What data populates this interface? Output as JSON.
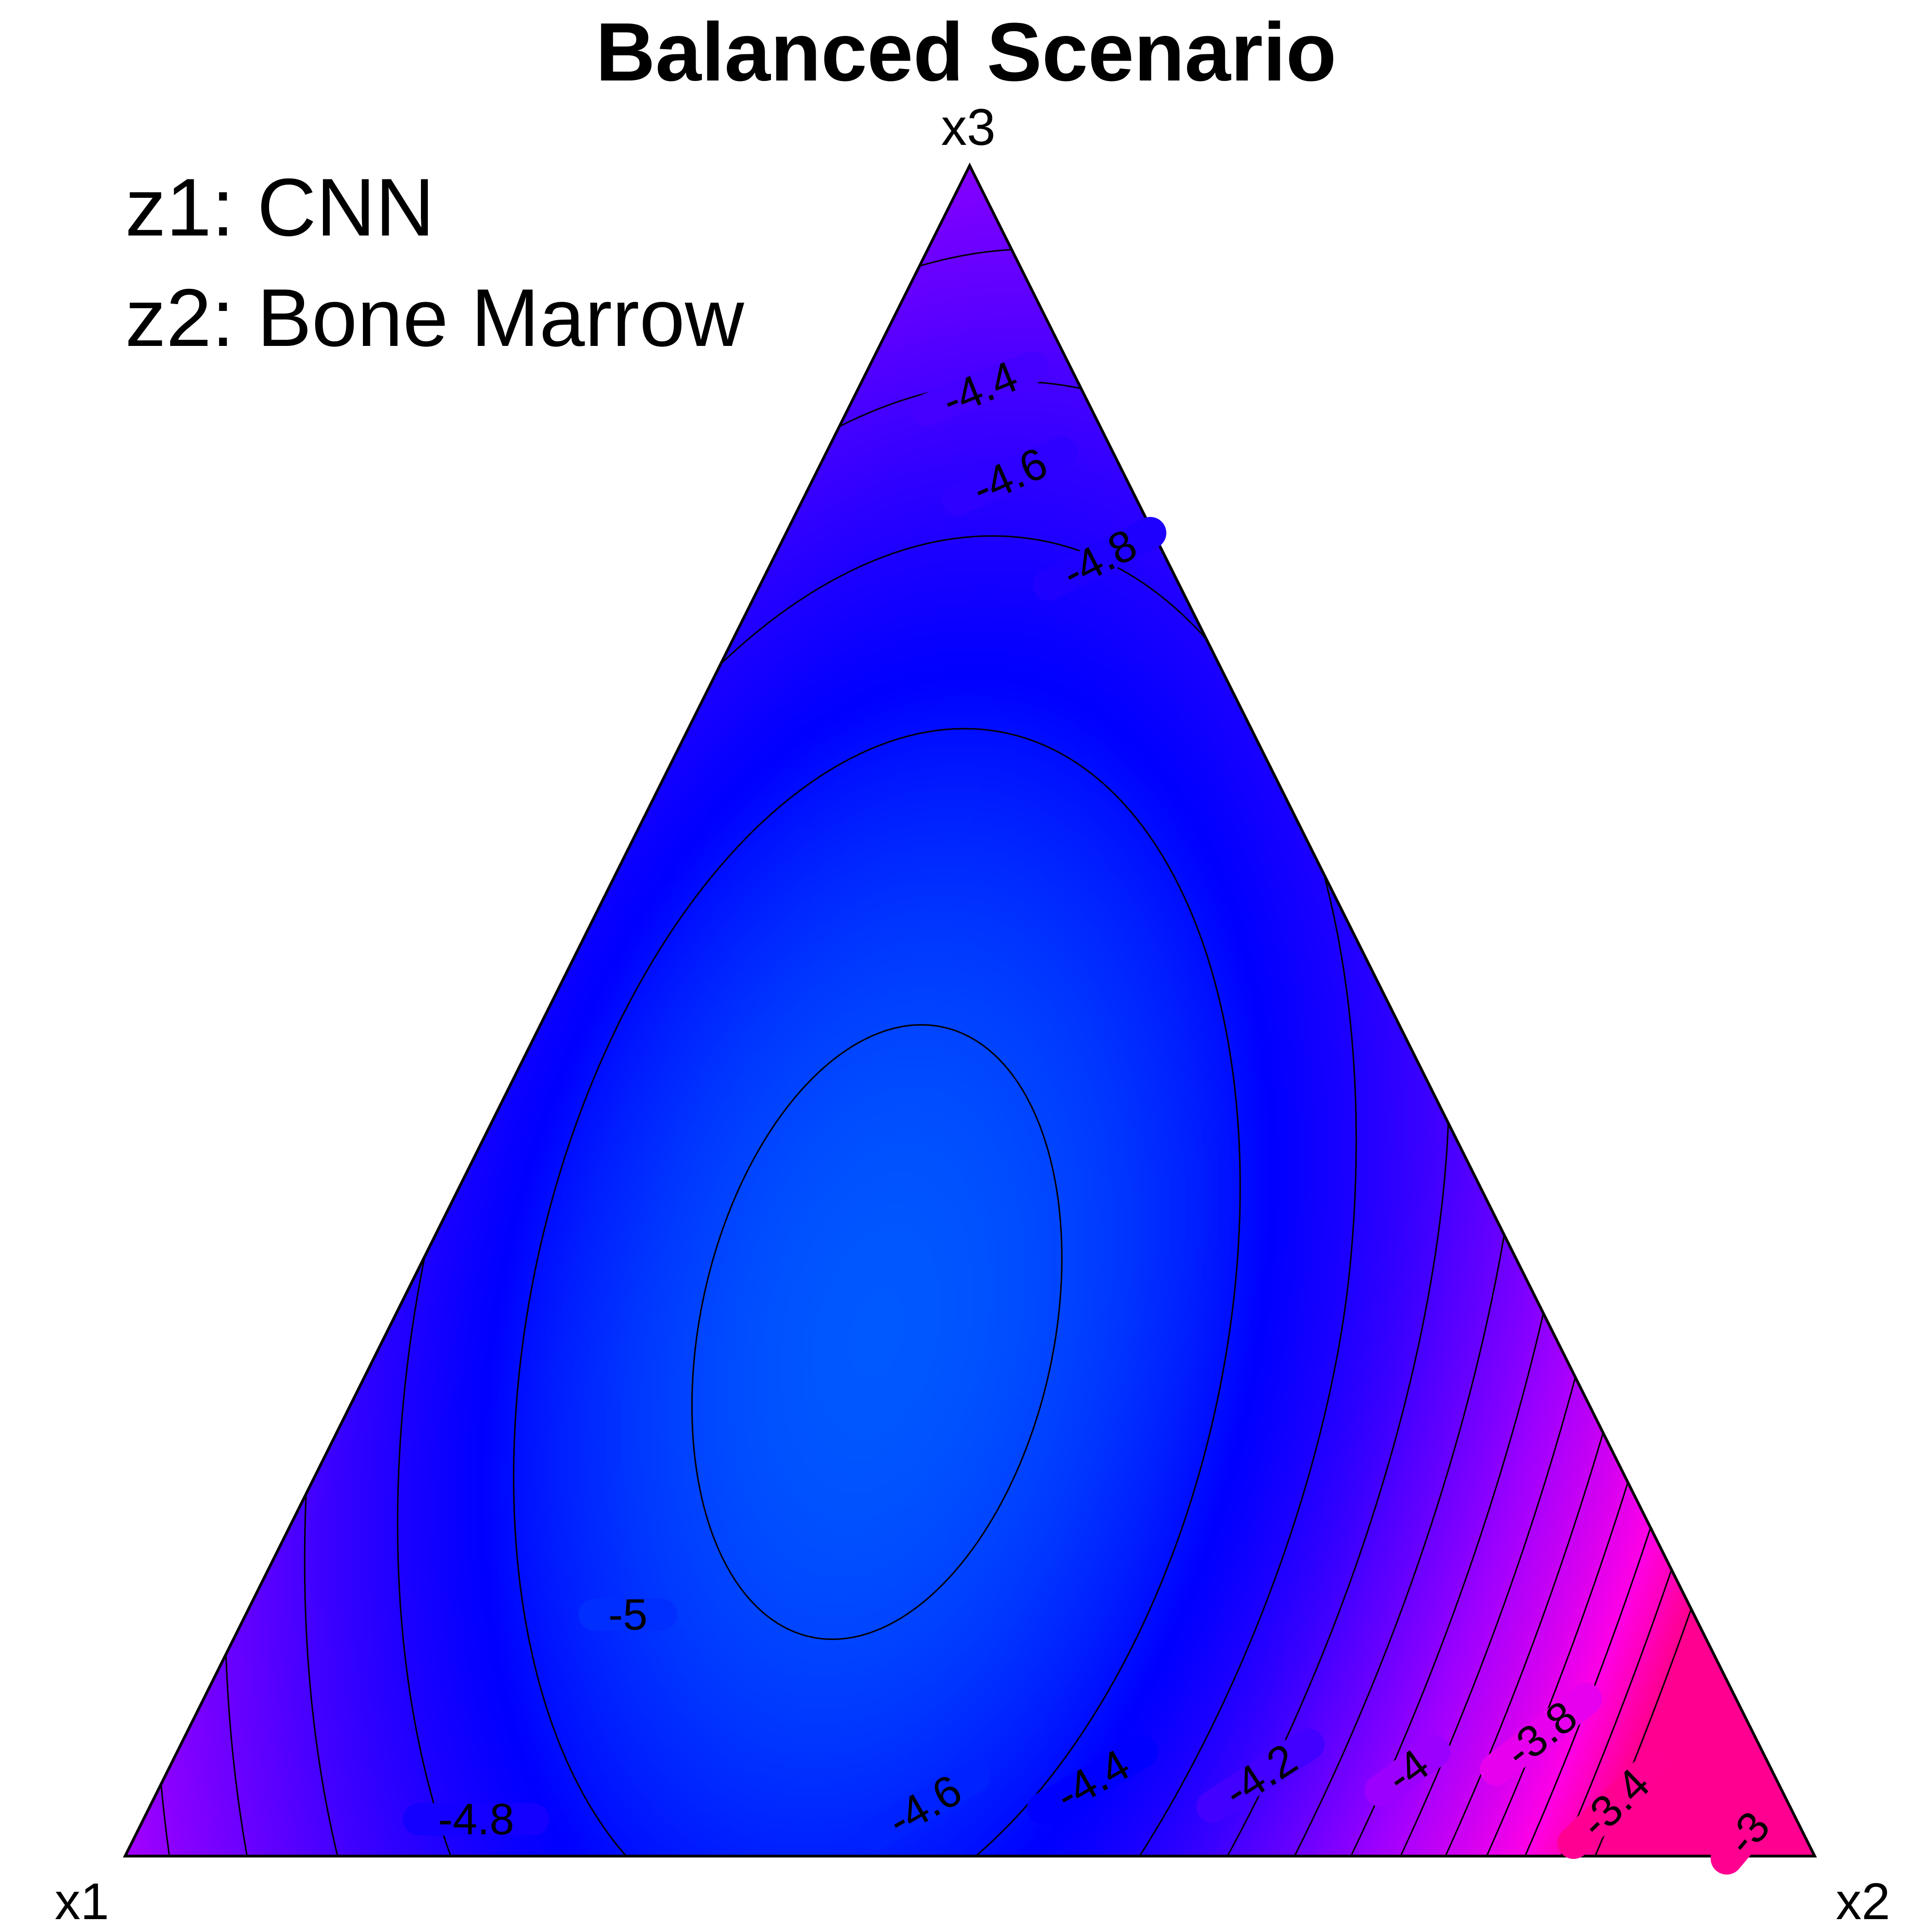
{
  "chart_data": {
    "type": "ternary-contour",
    "title": "Balanced Scenario",
    "vertices": {
      "left": "x1",
      "right": "x2",
      "top": "x3"
    },
    "annotations": [
      "z1: CNN",
      "z2: Bone Marrow"
    ],
    "contour_levels": [
      -5,
      -4.8,
      -4.6,
      -4.4,
      -4.2,
      -4,
      -3.8,
      -3.6,
      -3.4,
      -3.2,
      -3,
      -2.8
    ],
    "labeled_levels": [
      -5,
      -4.8,
      -4.6,
      -4.4,
      -4.2,
      -4,
      -3.8,
      -3.4,
      -3
    ],
    "labels": [
      {
        "text": "-5",
        "value": -5
      },
      {
        "text": "-4.8",
        "value": -4.8
      },
      {
        "text": "-4.6",
        "value": -4.6
      },
      {
        "text": "-4.4",
        "value": -4.4
      },
      {
        "text": "-4.2",
        "value": -4.2
      },
      {
        "text": "-4",
        "value": -4
      },
      {
        "text": "-3.8",
        "value": -3.8
      },
      {
        "text": "-3.4",
        "value": -3.4
      },
      {
        "text": "-3",
        "value": -3
      },
      {
        "text": "-4.8",
        "value": -4.8
      },
      {
        "text": "-4.6",
        "value": -4.6
      },
      {
        "text": "-4.4",
        "value": -4.4
      }
    ],
    "minimum": {
      "x1": 0.4,
      "x2": 0.29,
      "x3": 0.31,
      "z": -5.07
    },
    "z_range": [
      -5.07,
      -2.8
    ],
    "colorscale": [
      "#0058ff",
      "#0000ff",
      "#5a00ff",
      "#a000ff",
      "#ff00e6",
      "#ff0090"
    ]
  }
}
